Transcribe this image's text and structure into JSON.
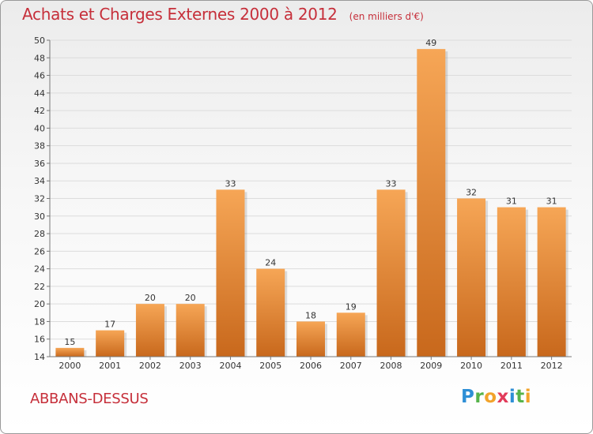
{
  "header": {
    "title": "Achats et Charges Externes 2000 à 2012",
    "subtitle": "(en milliers d'€)"
  },
  "footer": {
    "commune": "ABBANS-DESSUS",
    "logo_letters": [
      {
        "ch": "P",
        "color": "#2e8fd6"
      },
      {
        "ch": "r",
        "color": "#56b34a"
      },
      {
        "ch": "o",
        "color": "#f2a32a"
      },
      {
        "ch": "x",
        "color": "#e23b5a"
      },
      {
        "ch": "i",
        "color": "#2e8fd6"
      },
      {
        "ch": "t",
        "color": "#56b34a"
      },
      {
        "ch": "i",
        "color": "#f2a32a"
      }
    ]
  },
  "colors": {
    "bar_light": "#f6a656",
    "bar_dark": "#c8681c",
    "grid": "#dcdcdc",
    "axis": "#777777",
    "text": "#333333",
    "title": "#c62f3a"
  },
  "chart_data": {
    "type": "bar",
    "title": "Achats et Charges Externes 2000 à 2012",
    "unit": "(en milliers d'€)",
    "xlabel": "",
    "ylabel": "",
    "categories": [
      "2000",
      "2001",
      "2002",
      "2003",
      "2004",
      "2005",
      "2006",
      "2007",
      "2008",
      "2009",
      "2010",
      "2011",
      "2012"
    ],
    "values": [
      15,
      17,
      20,
      20,
      33,
      24,
      18,
      19,
      33,
      49,
      32,
      31,
      31
    ],
    "ylim": [
      14,
      50
    ],
    "yticks": [
      14,
      16,
      18,
      20,
      22,
      24,
      26,
      28,
      30,
      32,
      34,
      36,
      38,
      40,
      42,
      44,
      46,
      48,
      50
    ],
    "grid": true,
    "legend": "none"
  }
}
